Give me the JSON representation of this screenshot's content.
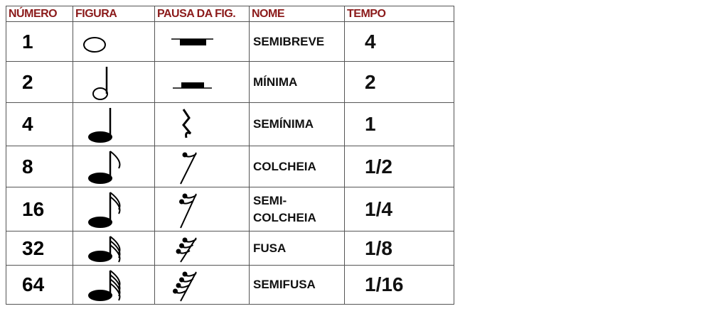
{
  "headers": [
    "NÚMERO",
    "FIGURA",
    "PAUSA DA FIG.",
    "NOME",
    "TEMPO"
  ],
  "header_color": "#8b1a1a",
  "rows": [
    {
      "numero": "1",
      "figura": "semibreve-note-icon",
      "pausa": "semibreve-rest-icon",
      "nome": "SEMIBREVE",
      "tempo": "4"
    },
    {
      "numero": "2",
      "figura": "minima-note-icon",
      "pausa": "minima-rest-icon",
      "nome": "MÍNIMA",
      "tempo": "2"
    },
    {
      "numero": "4",
      "figura": "seminima-note-icon",
      "pausa": "seminima-rest-icon",
      "nome": "SEMÍNIMA",
      "tempo": "1"
    },
    {
      "numero": "8",
      "figura": "colcheia-note-icon",
      "pausa": "colcheia-rest-icon",
      "nome": "COLCHEIA",
      "tempo": "1/2"
    },
    {
      "numero": "16",
      "figura": "semicolcheia-note-icon",
      "pausa": "semicolcheia-rest-icon",
      "nome": "SEMI-\nCOLCHEIA",
      "tempo": "1/4"
    },
    {
      "numero": "32",
      "figura": "fusa-note-icon",
      "pausa": "fusa-rest-icon",
      "nome": "FUSA",
      "tempo": "1/8"
    },
    {
      "numero": "64",
      "figura": "semifusa-note-icon",
      "pausa": "semifusa-rest-icon",
      "nome": "SEMIFUSA",
      "tempo": "1/16"
    }
  ]
}
